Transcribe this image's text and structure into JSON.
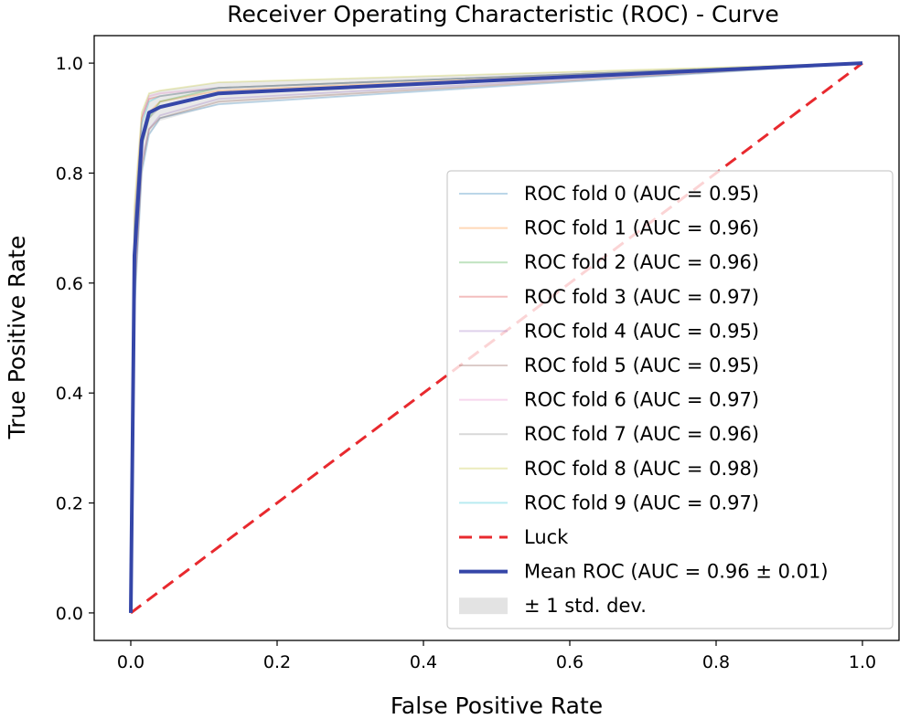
{
  "chart_data": {
    "type": "line",
    "title": "Receiver Operating Characteristic (ROC) - Curve",
    "xlabel": "False Positive Rate",
    "ylabel": "True Positive Rate",
    "xlim": [
      -0.05,
      1.05
    ],
    "ylim": [
      -0.05,
      1.05
    ],
    "xticks": [
      0.0,
      0.2,
      0.4,
      0.6,
      0.8,
      1.0
    ],
    "yticks": [
      0.0,
      0.2,
      0.4,
      0.6,
      0.8,
      1.0
    ],
    "tick_labels_x": [
      "0.0",
      "0.2",
      "0.4",
      "0.6",
      "0.8",
      "1.0"
    ],
    "tick_labels_y": [
      "0.0",
      "0.2",
      "0.4",
      "0.6",
      "0.8",
      "1.0"
    ],
    "legend_position": "lower-right",
    "series": [
      {
        "name": "ROC fold 0 (AUC = 0.95)",
        "color": "#1f77b4",
        "x": [
          0,
          0.005,
          0.015,
          0.025,
          0.04,
          0.12,
          1.0
        ],
        "y": [
          0,
          0.55,
          0.8,
          0.87,
          0.9,
          0.925,
          1.0
        ]
      },
      {
        "name": "ROC fold 1 (AUC = 0.96)",
        "color": "#ff7f0e",
        "x": [
          0,
          0.005,
          0.015,
          0.025,
          0.04,
          0.12,
          1.0
        ],
        "y": [
          0,
          0.65,
          0.86,
          0.91,
          0.93,
          0.95,
          1.0
        ]
      },
      {
        "name": "ROC fold 2 (AUC = 0.96)",
        "color": "#2ca02c",
        "x": [
          0,
          0.005,
          0.015,
          0.025,
          0.04,
          0.12,
          1.0
        ],
        "y": [
          0,
          0.62,
          0.85,
          0.9,
          0.93,
          0.955,
          1.0
        ]
      },
      {
        "name": "ROC fold 3 (AUC = 0.97)",
        "color": "#d62728",
        "x": [
          0,
          0.005,
          0.015,
          0.025,
          0.04,
          0.12,
          1.0
        ],
        "y": [
          0,
          0.7,
          0.9,
          0.935,
          0.94,
          0.955,
          1.0
        ]
      },
      {
        "name": "ROC fold 4 (AUC = 0.95)",
        "color": "#9467bd",
        "x": [
          0,
          0.005,
          0.015,
          0.025,
          0.04,
          0.12,
          1.0
        ],
        "y": [
          0,
          0.58,
          0.82,
          0.88,
          0.905,
          0.935,
          1.0
        ]
      },
      {
        "name": "ROC fold 5 (AUC = 0.95)",
        "color": "#8c564b",
        "x": [
          0,
          0.005,
          0.015,
          0.025,
          0.04,
          0.12,
          1.0
        ],
        "y": [
          0,
          0.57,
          0.81,
          0.88,
          0.9,
          0.93,
          1.0
        ]
      },
      {
        "name": "ROC fold 6 (AUC = 0.97)",
        "color": "#e377c2",
        "x": [
          0,
          0.005,
          0.015,
          0.025,
          0.04,
          0.12,
          1.0
        ],
        "y": [
          0,
          0.72,
          0.9,
          0.94,
          0.945,
          0.955,
          1.0
        ]
      },
      {
        "name": "ROC fold 7 (AUC = 0.96)",
        "color": "#7f7f7f",
        "x": [
          0,
          0.005,
          0.015,
          0.025,
          0.04,
          0.12,
          1.0
        ],
        "y": [
          0,
          0.63,
          0.85,
          0.9,
          0.92,
          0.945,
          1.0
        ]
      },
      {
        "name": "ROC fold 8 (AUC = 0.98)",
        "color": "#bcbd22",
        "x": [
          0,
          0.005,
          0.015,
          0.025,
          0.04,
          0.12,
          1.0
        ],
        "y": [
          0,
          0.74,
          0.91,
          0.945,
          0.95,
          0.965,
          1.0
        ]
      },
      {
        "name": "ROC fold 9 (AUC = 0.97)",
        "color": "#17becf",
        "x": [
          0,
          0.005,
          0.015,
          0.025,
          0.04,
          0.12,
          1.0
        ],
        "y": [
          0,
          0.7,
          0.89,
          0.93,
          0.94,
          0.955,
          1.0
        ]
      }
    ],
    "luck": {
      "name": "Luck",
      "color": "#e8292e",
      "x": [
        0,
        1
      ],
      "y": [
        0,
        1
      ]
    },
    "mean": {
      "name": "Mean ROC (AUC = 0.96 ± 0.01)",
      "color": "#3546a8",
      "x": [
        0,
        0.005,
        0.015,
        0.025,
        0.04,
        0.12,
        1.0
      ],
      "y": [
        0,
        0.65,
        0.86,
        0.91,
        0.92,
        0.945,
        1.0
      ]
    },
    "std": {
      "name": "± 1 std. dev.",
      "color": "#999999",
      "upper": [
        0,
        0.73,
        0.91,
        0.945,
        0.95,
        0.965,
        1.0
      ],
      "lower": [
        0,
        0.56,
        0.8,
        0.87,
        0.895,
        0.925,
        1.0
      ]
    }
  }
}
